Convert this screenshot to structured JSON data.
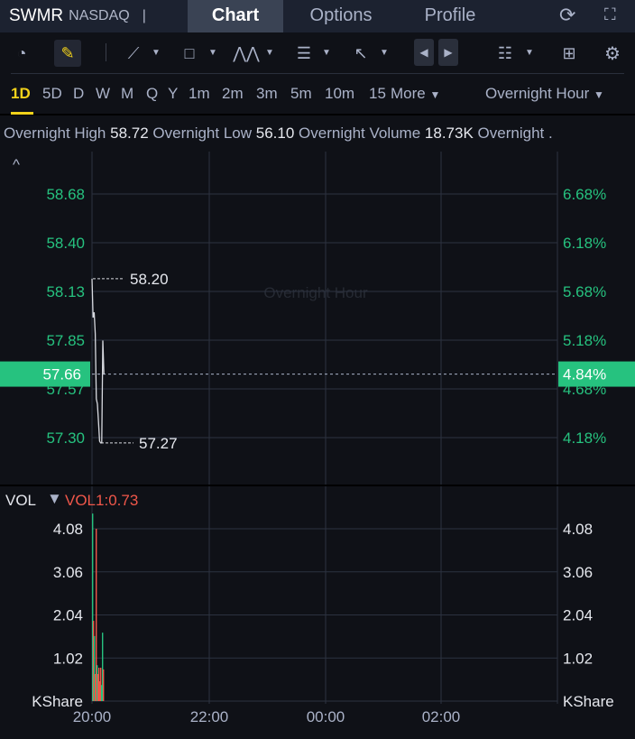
{
  "header": {
    "symbol": "SWMR",
    "exchange": "NASDAQ",
    "separator": "|",
    "tabs": [
      {
        "label": "Chart",
        "active": true
      },
      {
        "label": "Options"
      },
      {
        "label": "Profile"
      }
    ],
    "icons": [
      "refresh-icon",
      "fullscreen-icon"
    ]
  },
  "toolbar": {
    "icons": [
      "gauge-icon",
      "draw-pencil-icon",
      "line-tool-icon",
      "rectangle-tool-icon",
      "pattern-tool-icon",
      "text-tool-icon",
      "arrow-tool-icon",
      "scroll-left-icon",
      "scroll-right-icon",
      "indicator-list-icon",
      "layout-grid-icon",
      "settings-gear-icon"
    ]
  },
  "periods": {
    "items": [
      "1D",
      "5D",
      "D",
      "W",
      "M",
      "Q",
      "Y",
      "1m",
      "2m",
      "3m",
      "5m",
      "10m",
      "15"
    ],
    "active": "1D",
    "more": "More",
    "session": "Overnight Hour"
  },
  "info": {
    "high_label": "Overnight High",
    "high": "58.72",
    "low_label": "Overnight Low",
    "low": "56.10",
    "volume_label": "Overnight Volume",
    "volume": "18.73K",
    "more_label": "Overnight ."
  },
  "colors": {
    "up": "#26c27f",
    "down": "#f0574a",
    "accent": "#f2d21b",
    "current_price_bg": "#26c27f"
  },
  "chart_data": [
    {
      "type": "line",
      "watermark": "Overnight Hour",
      "y_ticks": [
        "58.68",
        "58.40",
        "58.13",
        "57.85",
        "57.57",
        "57.30"
      ],
      "y_ticks_pct": [
        "6.68%",
        "6.18%",
        "5.68%",
        "5.18%",
        "4.68%",
        "4.18%"
      ],
      "ylim": [
        57.3,
        58.68
      ],
      "current_price": "57.66",
      "current_pct": "4.84%",
      "high_marker": "58.20",
      "low_marker": "57.27",
      "prices": [
        58.2,
        57.98,
        58.01,
        57.89,
        57.52,
        57.49,
        57.39,
        57.28,
        57.27,
        57.27,
        57.85,
        57.66
      ]
    },
    {
      "type": "bar",
      "title": "VOL",
      "indicator": "VOL1:0.73",
      "unit": "KShare",
      "y_ticks": [
        "4.08",
        "3.06",
        "2.04",
        "1.02"
      ],
      "ylim": [
        0,
        4.08
      ],
      "x_ticks": [
        "20:00",
        "22:00",
        "00:00",
        "02:00"
      ],
      "values": [
        4.44,
        1.9,
        1.54,
        0.64,
        4.08,
        0.85,
        0.64,
        0.79,
        0.47,
        0.79,
        0.38,
        1.62,
        0.75
      ],
      "directions": [
        "up",
        "down",
        "up",
        "down",
        "down",
        "up",
        "down",
        "down",
        "down",
        "down",
        "up",
        "up",
        "down"
      ]
    }
  ]
}
